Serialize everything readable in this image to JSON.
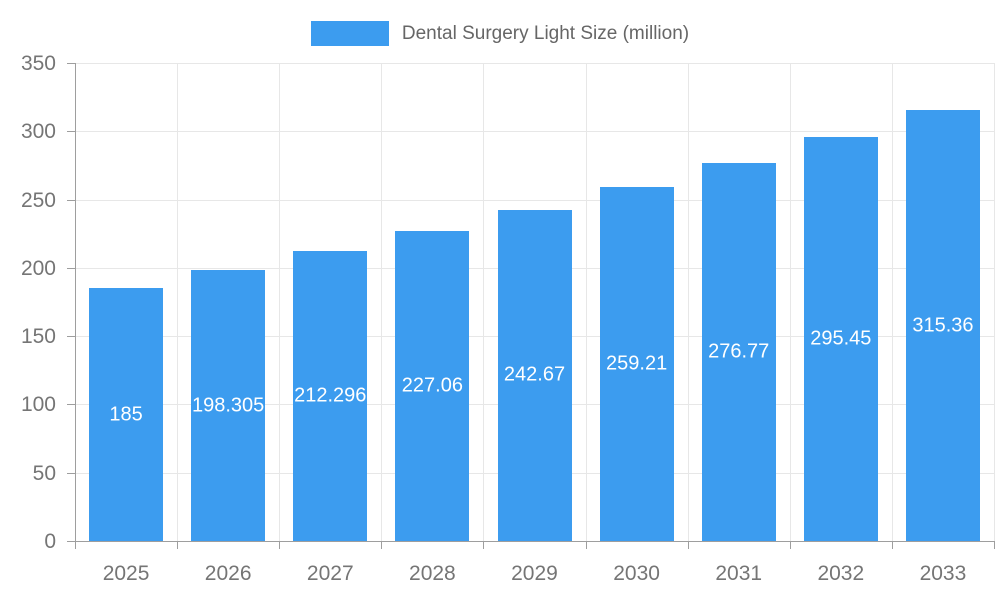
{
  "legend": {
    "label": "Dental Surgery Light Size (million)"
  },
  "chart_data": {
    "type": "bar",
    "title": "Dental Surgery Light Size (million)",
    "categories": [
      "2025",
      "2026",
      "2027",
      "2028",
      "2029",
      "2030",
      "2031",
      "2032",
      "2033"
    ],
    "values": [
      185,
      198.305,
      212.296,
      227.06,
      242.67,
      259.21,
      276.77,
      295.45,
      315.36
    ],
    "bar_labels": [
      "185",
      "198.305",
      "212.296",
      "227.06",
      "242.67",
      "259.21",
      "276.77",
      "295.45",
      "315.36"
    ],
    "series_name": "Dental Surgery Light Size (million)",
    "xlabel": "",
    "ylabel": "",
    "ylim": [
      0,
      350
    ],
    "yticks": [
      0,
      50,
      100,
      150,
      200,
      250,
      300,
      350
    ],
    "grid": true,
    "legend_position": "top-center",
    "value_label_position": "inside-center",
    "colors": {
      "bar": "#3C9CEF",
      "bar_label": "#FFFFFF",
      "grid": "#E7E7E7",
      "axis": "#9E9E9E",
      "axis_label": "#757575",
      "legend_text": "#666666",
      "background": "#FFFFFF"
    }
  }
}
